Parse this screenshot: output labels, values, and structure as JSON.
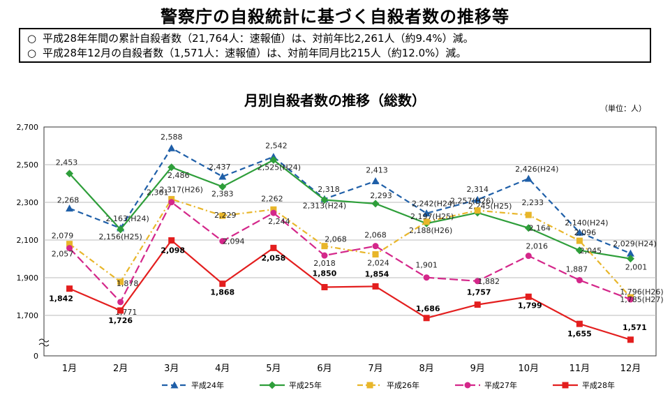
{
  "page": {
    "title": "警察庁の自殺統計に基づく自殺者数の推移等",
    "summary_mark": "○",
    "summary": [
      "平成28年年間の累計自殺者数（21,764人：速報値）は、対前年比2,261人（約9.4%）減。",
      "平成28年12月の自殺者数（1,571人：速報値）は、対前年同月比215人（約12.0%）減。"
    ],
    "unit": "（単位：人）"
  },
  "chart_data": {
    "type": "line",
    "title": "月別自殺者数の推移（総数）",
    "categories": [
      "1月",
      "2月",
      "3月",
      "4月",
      "5月",
      "6月",
      "7月",
      "8月",
      "9月",
      "10月",
      "11月",
      "12月"
    ],
    "y_ticks": [
      "0",
      "1,700",
      "1,900",
      "2,100",
      "2,300",
      "2,500",
      "2,700"
    ],
    "ylim": [
      1560,
      2700
    ],
    "axis_break": true,
    "grid": "horizontal",
    "legend_position": "bottom",
    "series": [
      {
        "name": "平成24年",
        "color": "#1f5fa8",
        "marker": "triangle",
        "dash": "8,5",
        "bold_labels": false,
        "values": [
          2268,
          2163,
          2588,
          2437,
          2542,
          2318,
          2413,
          2242,
          2314,
          2426,
          2140,
          2029
        ],
        "labels": [
          "2,268",
          "2,163(H24)",
          "2,588",
          "2,437",
          "2,542",
          "2,318",
          "2,413",
          "2,242(H24)",
          "2,314",
          "2,426(H24)",
          "2,140(H24)",
          "2,029(H24)"
        ]
      },
      {
        "name": "平成25年",
        "color": "#2e9e3a",
        "marker": "diamond",
        "dash": "",
        "bold_labels": false,
        "values": [
          2453,
          2156,
          2486,
          2383,
          2525,
          2313,
          2293,
          2188,
          2245,
          2164,
          2045,
          2001
        ],
        "labels": [
          "2,453",
          "2,156(H25)",
          "2,486",
          "2,383",
          "2,525(H24)",
          "2,313(H24)",
          "2,293",
          "2,188(H26)",
          "2,245(H25)",
          "2,164",
          "2,045",
          "2,001"
        ]
      },
      {
        "name": "平成26年",
        "color": "#e8b62a",
        "marker": "square",
        "dash": "8,4,2,4",
        "bold_labels": false,
        "values": [
          2079,
          1878,
          2317,
          2229,
          2262,
          2068,
          2024,
          2197,
          2257,
          2233,
          2096,
          1796
        ],
        "labels": [
          "2,079",
          "1,878",
          "2,317(H26)",
          "2,229",
          "2,262",
          "2,068",
          "2,024",
          "2,197(H25)",
          "2,257(H26)",
          "2,233",
          "2,096",
          "1,796(H26)"
        ]
      },
      {
        "name": "平成27年",
        "color": "#d4278a",
        "marker": "circle",
        "dash": "12,5",
        "bold_labels": false,
        "values": [
          2057,
          1771,
          2301,
          2094,
          2244,
          2018,
          2068,
          1901,
          1882,
          2016,
          1887,
          1785
        ],
        "labels": [
          "2,057",
          "1,771",
          "2,301",
          "2,094",
          "2,244",
          "2,018",
          "2,068",
          "1,901",
          "1,882",
          "2,016",
          "1,887",
          "1,785(H27)"
        ]
      },
      {
        "name": "平成28年",
        "color": "#e31e1e",
        "marker": "square",
        "dash": "",
        "bold_labels": true,
        "values": [
          1842,
          1726,
          2098,
          1868,
          2058,
          1850,
          1854,
          1686,
          1757,
          1799,
          1655,
          1571
        ],
        "labels": [
          "1,842",
          "1,726",
          "2,098",
          "1,868",
          "2,058",
          "1,850",
          "1,854",
          "1,686",
          "1,757",
          "1,799",
          "1,655",
          "1,571"
        ]
      }
    ]
  }
}
